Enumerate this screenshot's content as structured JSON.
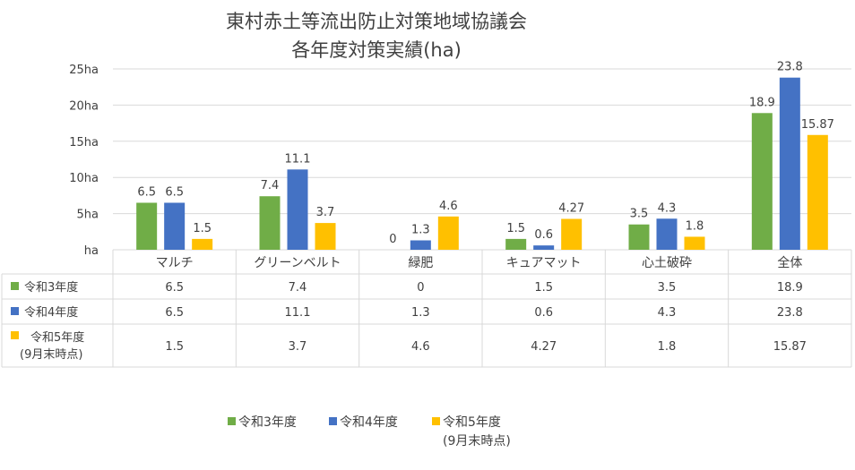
{
  "chart_data": {
    "type": "bar",
    "title_line1": "東村赤土等流出防止対策地域協議会",
    "title_line2": "各年度対策実績(ha)",
    "categories": [
      "マルチ",
      "グリーンベルト",
      "緑肥",
      "キュアマット",
      "心土破砕",
      "全体"
    ],
    "series": [
      {
        "name": "令和3年度",
        "name_line2": "",
        "color": "#70ad47",
        "values": [
          6.5,
          7.4,
          0,
          1.5,
          3.5,
          18.9
        ],
        "labels": [
          "6.5",
          "7.4",
          "0",
          "1.5",
          "3.5",
          "18.9"
        ]
      },
      {
        "name": "令和4年度",
        "name_line2": "",
        "color": "#4472c4",
        "values": [
          6.5,
          11.1,
          1.3,
          0.6,
          4.3,
          23.8
        ],
        "labels": [
          "6.5",
          "11.1",
          "1.3",
          "0.6",
          "4.3",
          "23.8"
        ]
      },
      {
        "name": "令和5年度",
        "name_line2": "(9月末時点)",
        "color": "#ffc000",
        "values": [
          1.5,
          3.7,
          4.6,
          4.27,
          1.8,
          15.87
        ],
        "labels": [
          "1.5",
          "3.7",
          "4.6",
          "4.27",
          "1.8",
          "15.87"
        ]
      }
    ],
    "y_ticks": [
      "ha",
      "5ha",
      "10ha",
      "15ha",
      "20ha",
      "25ha"
    ],
    "ylim": [
      0,
      25
    ],
    "grid": true,
    "legend": "bottom",
    "data_table": true
  }
}
